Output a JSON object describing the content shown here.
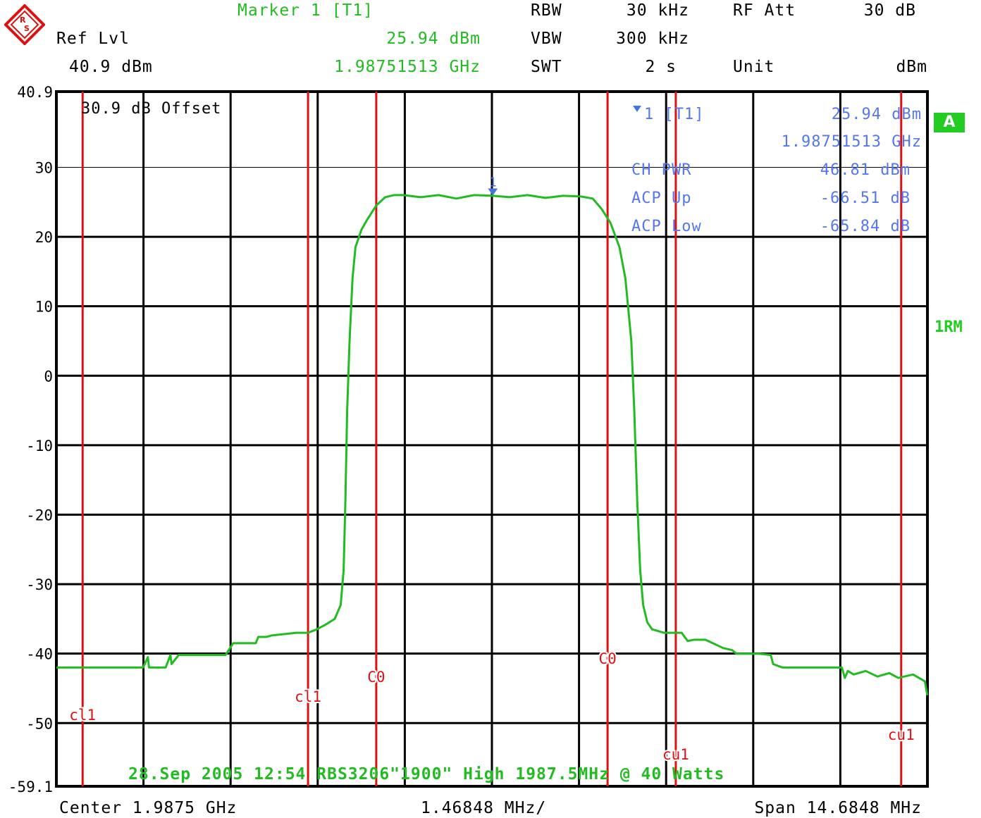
{
  "header": {
    "marker_title": "Marker 1 [T1]",
    "ref_lvl_label": "Ref Lvl",
    "ref_lvl_value": "40.9 dBm",
    "marker_level": "25.94 dBm",
    "marker_freq": "1.98751513 GHz",
    "rbw_label": "RBW",
    "rbw_value": "30 kHz",
    "vbw_label": "VBW",
    "vbw_value": "300 kHz",
    "swt_label": "SWT",
    "swt_value": "2 s",
    "rf_att_label": "RF Att",
    "rf_att_value": "30 dB",
    "unit_label": "Unit",
    "unit_value": "dBm"
  },
  "side": {
    "badge": "A",
    "trace_mode": "1RM"
  },
  "footer": {
    "center": "Center 1.9875 GHz",
    "per_div": "1.46848 MHz/",
    "span": "Span 14.6848 MHz"
  },
  "colors": {
    "trace": "#22bb22",
    "channel_lines": "#dd1111",
    "marker": "#4477dd",
    "info_text": "#5577ee",
    "grid": "#000000"
  },
  "chart_data": {
    "type": "line",
    "title": "",
    "xlabel": "",
    "ylabel": "",
    "offset_text": "30.9 dB Offset",
    "date_text": "28.Sep 2005 12:54 RBS3206\"1900\" High 1987.5MHz @ 40 Watts",
    "ylim": [
      -59.1,
      40.9
    ],
    "xlim_mhz": [
      1980.1576,
      1994.8424
    ],
    "y_tick_labels": [
      "40.9",
      "30",
      "20",
      "10",
      "0",
      "-10",
      "-20",
      "-30",
      "-40",
      "-50",
      "-59.1"
    ],
    "y_tick_values": [
      40.9,
      30,
      20,
      10,
      0,
      -10,
      -20,
      -30,
      -40,
      -50,
      -59.1
    ],
    "grid": true,
    "marker": {
      "label": "1",
      "x_mhz": 1987.51513,
      "y_dbm": 25.94,
      "readout_name": "1 [T1]",
      "readout_level": "25.94 dBm",
      "readout_freq": "1.98751513 GHz"
    },
    "measurements": [
      {
        "label": "CH PWR",
        "value": "46.81 dBm"
      },
      {
        "label": "ACP Up",
        "value": "-66.51 dB"
      },
      {
        "label": "ACP Low",
        "value": "-65.84 dB"
      }
    ],
    "channel_lines": [
      {
        "label": "cl1",
        "x_mhz": 1980.6
      },
      {
        "label": "cl1",
        "x_mhz": 1984.4
      },
      {
        "label": "C0",
        "x_mhz": 1985.55
      },
      {
        "label": "C0",
        "x_mhz": 1989.45
      },
      {
        "label": "cu1",
        "x_mhz": 1990.6
      },
      {
        "label": "cu1",
        "x_mhz": 1994.4
      }
    ],
    "series": [
      {
        "x_mhz": [
          1980.16,
          1981.62,
          1981.7,
          1981.72,
          1982.0,
          1982.08,
          1982.1,
          1982.22,
          1982.3,
          1982.33,
          1982.4,
          1982.62,
          1983.01,
          1983.1,
          1983.14,
          1983.52,
          1983.56,
          1983.7,
          1983.78,
          1984.2,
          1984.4,
          1984.55,
          1984.7,
          1984.85,
          1984.95,
          1985.0,
          1985.03,
          1985.06,
          1985.1,
          1985.15,
          1985.2,
          1985.3,
          1985.4,
          1985.55,
          1985.7,
          1985.85,
          1986.0,
          1986.3,
          1986.6,
          1986.9,
          1987.2,
          1987.515,
          1987.8,
          1988.1,
          1988.4,
          1988.7,
          1989.0,
          1989.2,
          1989.35,
          1989.5,
          1989.65,
          1989.75,
          1989.85,
          1989.9,
          1989.95,
          1990.0,
          1990.05,
          1990.12,
          1990.2,
          1990.4,
          1990.7,
          1990.8,
          1990.9,
          1991.1,
          1991.4,
          1991.55,
          1991.62,
          1991.7,
          1992.0,
          1992.2,
          1992.24,
          1992.3,
          1992.4,
          1993.4,
          1993.45,
          1993.5,
          1993.6,
          1993.8,
          1994.0,
          1994.2,
          1994.35,
          1994.6,
          1994.7,
          1994.8,
          1994.84
        ],
        "y_dbm": [
          -42.0,
          -42.0,
          -40.5,
          -42.0,
          -42.0,
          -40.2,
          -41.5,
          -40.2,
          -40.2,
          -40.2,
          -40.2,
          -40.2,
          -40.2,
          -39.0,
          -38.5,
          -38.5,
          -37.6,
          -37.6,
          -37.4,
          -37.0,
          -37.0,
          -36.5,
          -35.8,
          -35.0,
          -33.0,
          -28.0,
          -18.0,
          -5.0,
          5.0,
          14.0,
          18.5,
          21.0,
          22.5,
          24.5,
          25.7,
          26.0,
          26.0,
          25.7,
          26.0,
          25.5,
          26.0,
          25.9,
          25.7,
          26.0,
          25.6,
          25.9,
          25.8,
          25.5,
          24.0,
          22.0,
          18.5,
          14.0,
          5.0,
          -5.0,
          -18.0,
          -28.0,
          -33.0,
          -35.5,
          -36.5,
          -37.0,
          -37.0,
          -38.2,
          -38.0,
          -38.0,
          -39.2,
          -39.5,
          -40.0,
          -40.0,
          -40.0,
          -40.2,
          -41.5,
          -41.7,
          -42.0,
          -42.0,
          -43.5,
          -42.5,
          -43.0,
          -42.5,
          -43.3,
          -42.8,
          -43.5,
          -43.0,
          -43.5,
          -44.0,
          -46.0
        ]
      }
    ]
  }
}
